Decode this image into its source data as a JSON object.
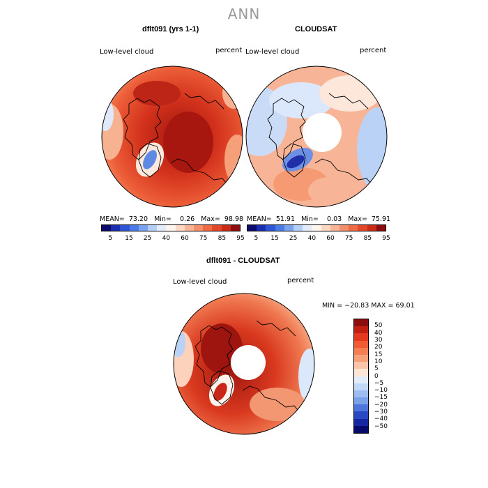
{
  "title": "ANN",
  "panels": {
    "model": {
      "title": "dflt091 (yrs 1-1)",
      "variable": "Low-level cloud",
      "units": "percent",
      "stats": {
        "mean_label": "MEAN=",
        "mean": "73.20",
        "min_label": "Min=",
        "min": "0.26",
        "max_label": "Max=",
        "max": "98.98"
      }
    },
    "obs": {
      "title": "CLOUDSAT",
      "variable": "Low-level cloud",
      "units": "percent",
      "stats": {
        "mean_label": "MEAN=",
        "mean": "51.91",
        "min_label": "Min=",
        "min": "0.03",
        "max_label": "Max=",
        "max": "75.91"
      }
    },
    "diff": {
      "title": "dflt091 - CLOUDSAT",
      "variable": "Low-level cloud",
      "units": "percent",
      "range_text": "MIN = −20.83 MAX =   69.01"
    }
  },
  "colorbar_abs": {
    "colors": [
      "#0b0b6e",
      "#1a2fb0",
      "#2d55d6",
      "#4a7ae6",
      "#7aa3ef",
      "#b3cff7",
      "#e3ecfb",
      "#fff5ee",
      "#fcd7c1",
      "#f8b496",
      "#f48e6a",
      "#ef6a44",
      "#e2472a",
      "#c92b17",
      "#8c0d0d"
    ],
    "ticks": [
      "5",
      "15",
      "25",
      "40",
      "60",
      "75",
      "85",
      "95"
    ]
  },
  "colorbar_diff": {
    "colors": [
      "#8c0d0d",
      "#c01f12",
      "#e2391f",
      "#ef5b33",
      "#f27e52",
      "#f6a07a",
      "#fac5a8",
      "#fde6d8",
      "#e3ecfb",
      "#c2d8f6",
      "#9dbdf2",
      "#7aa0ea",
      "#4f74dc",
      "#2a48c4",
      "#1426a0",
      "#07096b"
    ],
    "ticks": [
      "50",
      "40",
      "30",
      "20",
      "15",
      "10",
      "5",
      "0",
      "−5",
      "−10",
      "−15",
      "−20",
      "−30",
      "−40",
      "−50"
    ]
  }
}
